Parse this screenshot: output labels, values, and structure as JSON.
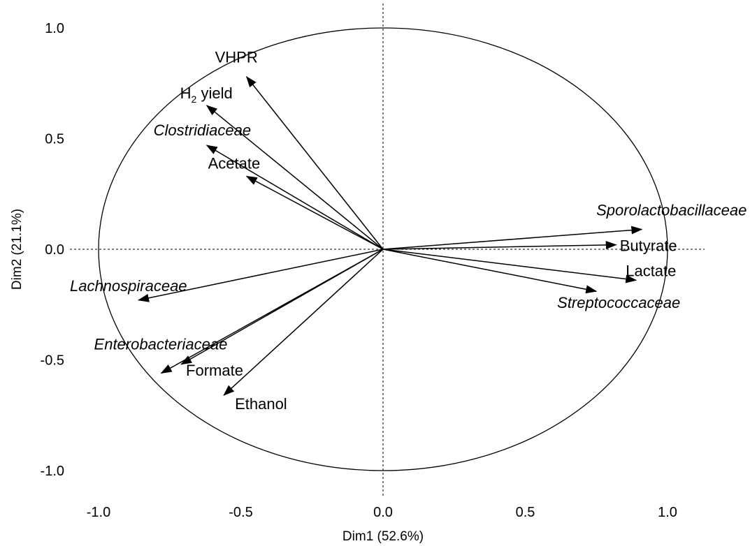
{
  "chart_data": {
    "type": "pca-correlation-circle",
    "xlabel": "Dim1 (52.6%)",
    "ylabel": "Dim2 (21.1%)",
    "xlim": [
      -1.0,
      1.0
    ],
    "ylim": [
      -1.0,
      1.0
    ],
    "x_ticks": [
      "-1.0",
      "-0.5",
      "0.0",
      "0.5",
      "1.0"
    ],
    "y_ticks": [
      "1.0",
      "0.5",
      "0.0",
      "-0.5",
      "-1.0"
    ],
    "grid": false,
    "vectors": [
      {
        "name": "VHPR",
        "x": -0.48,
        "y": 0.78,
        "italic": false,
        "subscript": null
      },
      {
        "name": "H",
        "x": -0.62,
        "y": 0.65,
        "italic": false,
        "subscript": {
          "sub": "2",
          "rest": " yield"
        }
      },
      {
        "name": "Clostridiaceae",
        "x": -0.62,
        "y": 0.47,
        "italic": true,
        "subscript": null
      },
      {
        "name": "Acetate",
        "x": -0.48,
        "y": 0.33,
        "italic": false,
        "subscript": null
      },
      {
        "name": "Sporolactobacillaceae",
        "x": 0.91,
        "y": 0.09,
        "italic": true,
        "subscript": null
      },
      {
        "name": "Butyrate",
        "x": 0.82,
        "y": 0.02,
        "italic": false,
        "subscript": null
      },
      {
        "name": "Lactate",
        "x": 0.89,
        "y": -0.14,
        "italic": false,
        "subscript": null
      },
      {
        "name": "Streptococcaceae",
        "x": 0.75,
        "y": -0.19,
        "italic": true,
        "subscript": null
      },
      {
        "name": "Lachnospiraceae",
        "x": -0.86,
        "y": -0.23,
        "italic": true,
        "subscript": null
      },
      {
        "name": "Enterobacteriaceae",
        "x": -0.78,
        "y": -0.56,
        "italic": true,
        "subscript": null
      },
      {
        "name": "Formate",
        "x": -0.71,
        "y": -0.52,
        "italic": false,
        "subscript": null
      },
      {
        "name": "Ethanol",
        "x": -0.56,
        "y": -0.66,
        "italic": false,
        "subscript": null
      }
    ]
  }
}
